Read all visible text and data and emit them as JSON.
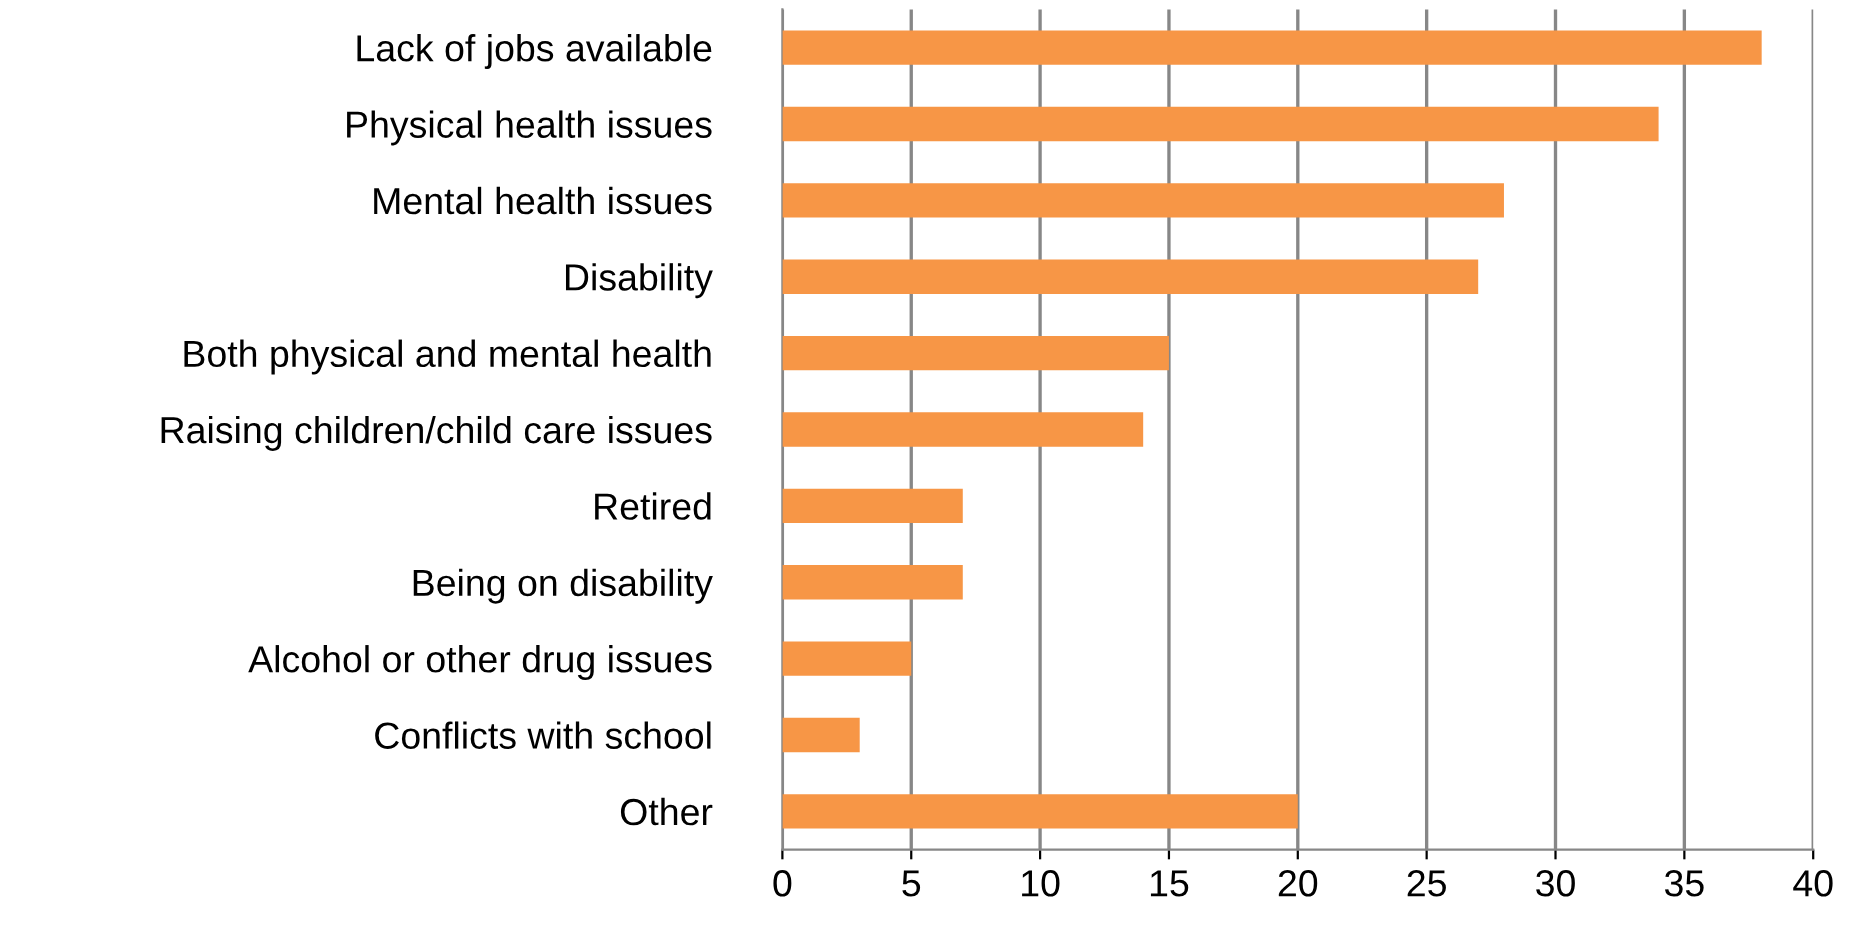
{
  "chart_data": {
    "type": "bar",
    "orientation": "horizontal",
    "categories": [
      "Lack of jobs available",
      "Physical health issues",
      "Mental health issues",
      "Disability",
      "Both physical and mental health",
      "Raising children/child care issues",
      "Retired",
      "Being on disability",
      "Alcohol or other drug issues",
      "Conflicts with school",
      "Other"
    ],
    "values": [
      38,
      34,
      28,
      27,
      15,
      14,
      7,
      7,
      5,
      3,
      20
    ],
    "color": "#f79646",
    "xlim": [
      0,
      40
    ],
    "xticks": [
      0,
      5,
      10,
      15,
      20,
      25,
      30,
      35,
      40
    ],
    "grid": "x",
    "legend": false
  }
}
